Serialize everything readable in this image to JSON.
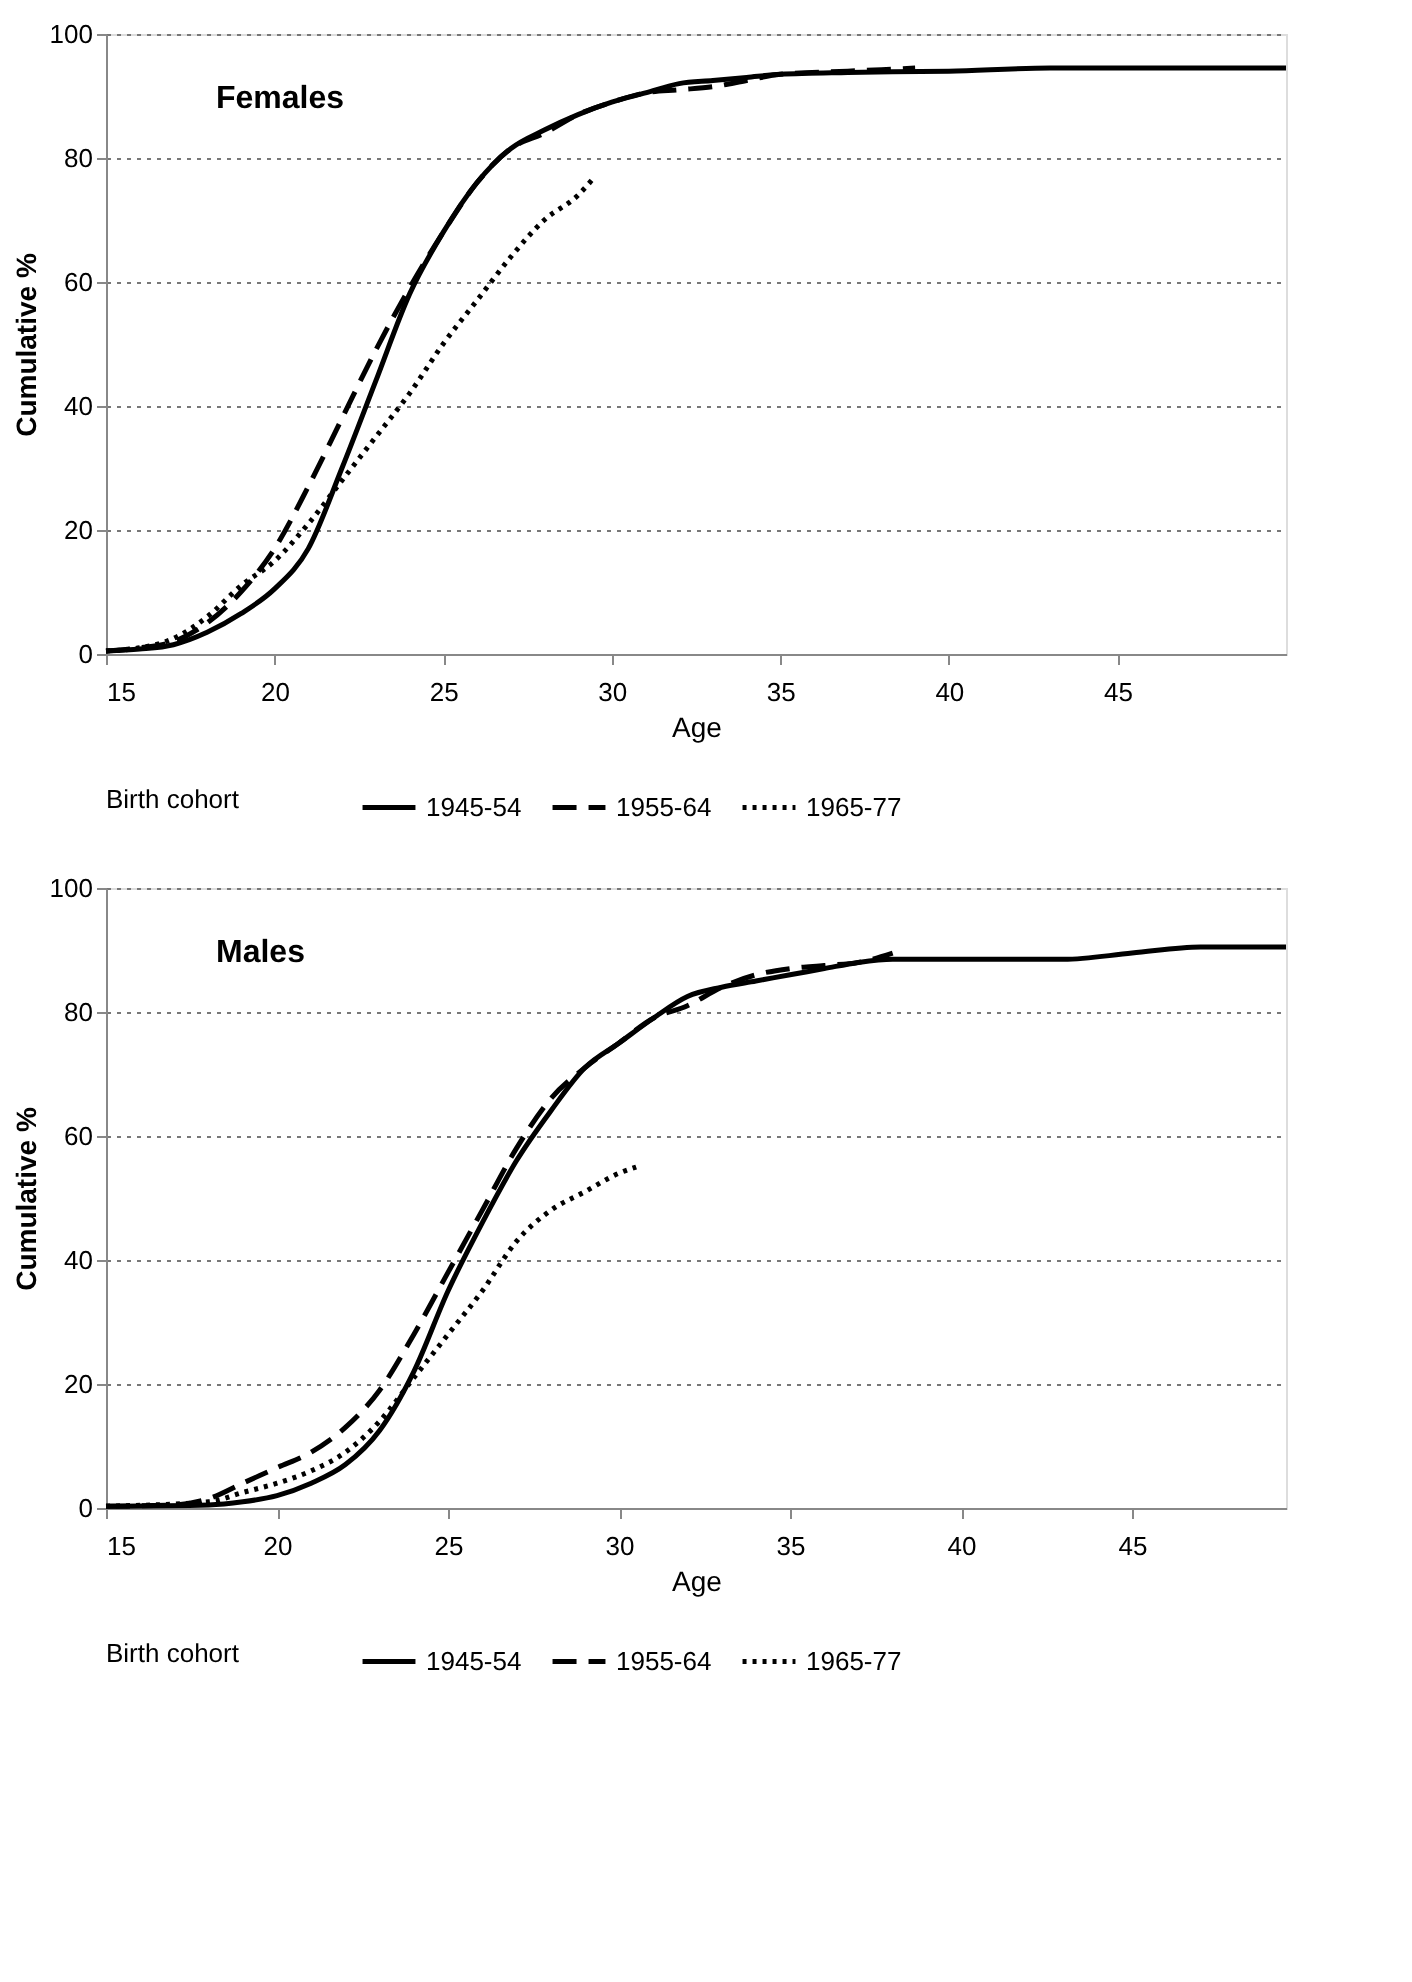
{
  "chart_data": [
    {
      "type": "line",
      "title": "Females",
      "xlabel": "Age",
      "ylabel": "Cumulative %",
      "legend_title": "Birth cohort",
      "legend": "bottom",
      "grid": "y",
      "xlim": [
        15,
        50
      ],
      "xticks": [
        15,
        20,
        25,
        30,
        35,
        40,
        45
      ],
      "ylim": [
        0,
        100
      ],
      "yticks": [
        0,
        20,
        40,
        60,
        80,
        100
      ],
      "series": [
        {
          "name": "1945-54",
          "color": "#000000",
          "line_style": "solid",
          "x": [
            15,
            16,
            17,
            18,
            19,
            20,
            21,
            22,
            23,
            24,
            25,
            26,
            27,
            28,
            29,
            30,
            31,
            32,
            33,
            34,
            35,
            37,
            40,
            43,
            50
          ],
          "values": [
            0.5,
            0.8,
            1.5,
            3.5,
            6.5,
            10.5,
            17,
            30,
            44,
            58,
            68,
            76,
            81.5,
            84.5,
            87,
            89,
            90.5,
            92,
            92.5,
            93,
            93.5,
            93.8,
            94,
            94.5,
            94.5
          ]
        },
        {
          "name": "1955-64",
          "color": "#000000",
          "line_style": "dashed",
          "x": [
            15,
            16,
            17,
            18,
            19,
            20,
            21,
            22,
            23,
            24,
            25,
            26,
            27,
            28,
            29,
            30,
            31,
            32,
            33,
            34,
            35,
            37,
            39
          ],
          "values": [
            0.5,
            1,
            2,
            5,
            10,
            17,
            27,
            38,
            49,
            59,
            68,
            76,
            81.5,
            84,
            87,
            89,
            90.5,
            91,
            91.5,
            92.5,
            93.5,
            94,
            94.5
          ]
        },
        {
          "name": "1965-77",
          "color": "#000000",
          "line_style": "dotted",
          "x": [
            15,
            16,
            17,
            18,
            19,
            20,
            21,
            22,
            23,
            24,
            25,
            26,
            27,
            28,
            29,
            29.5
          ],
          "values": [
            0.5,
            1,
            2.5,
            6,
            11,
            15,
            21,
            28,
            35,
            42,
            50,
            57,
            64,
            70,
            74,
            77
          ]
        }
      ]
    },
    {
      "type": "line",
      "title": "Males",
      "xlabel": "Age",
      "ylabel": "Cumulative %",
      "legend_title": "Birth cohort",
      "legend": "bottom",
      "grid": "y",
      "xlim": [
        15,
        49.5
      ],
      "xticks": [
        15,
        20,
        25,
        30,
        35,
        40,
        45
      ],
      "ylim": [
        0,
        100
      ],
      "yticks": [
        0,
        20,
        40,
        60,
        80,
        100
      ],
      "series": [
        {
          "name": "1945-54",
          "color": "#000000",
          "line_style": "solid",
          "x": [
            15,
            18,
            19,
            20,
            21,
            22,
            23,
            24,
            25,
            26,
            27,
            28,
            29,
            30,
            31,
            32,
            33,
            34,
            35,
            36,
            37,
            38,
            40,
            43,
            45,
            47,
            49.5
          ],
          "values": [
            0.3,
            0.5,
            1,
            2,
            4,
            7,
            12.5,
            22,
            35,
            46,
            56,
            64,
            71,
            75,
            79,
            82.5,
            84,
            85,
            86,
            87,
            88,
            88.5,
            88.5,
            88.5,
            89.5,
            90.5,
            90.5
          ]
        },
        {
          "name": "1955-64",
          "color": "#000000",
          "line_style": "dashed",
          "x": [
            15,
            17,
            18,
            19,
            20,
            21,
            22,
            23,
            24,
            25,
            26,
            27,
            28,
            29,
            30,
            31,
            32,
            33,
            34,
            35,
            36,
            37,
            38
          ],
          "values": [
            0.3,
            0.5,
            1.5,
            4,
            6.5,
            9,
            13,
            19,
            28,
            38,
            48,
            58,
            66,
            71,
            75,
            79,
            81,
            84,
            86,
            87,
            87.5,
            88,
            89.5
          ]
        },
        {
          "name": "1965-77",
          "color": "#000000",
          "line_style": "dotted",
          "x": [
            15,
            18,
            19,
            20,
            21,
            22,
            23,
            24,
            25,
            26,
            27,
            28,
            29,
            30,
            30.5
          ],
          "values": [
            0.3,
            1,
            2.5,
            4,
            6,
            9,
            14,
            21,
            28,
            35,
            43,
            48,
            51,
            54,
            55
          ]
        }
      ]
    }
  ]
}
